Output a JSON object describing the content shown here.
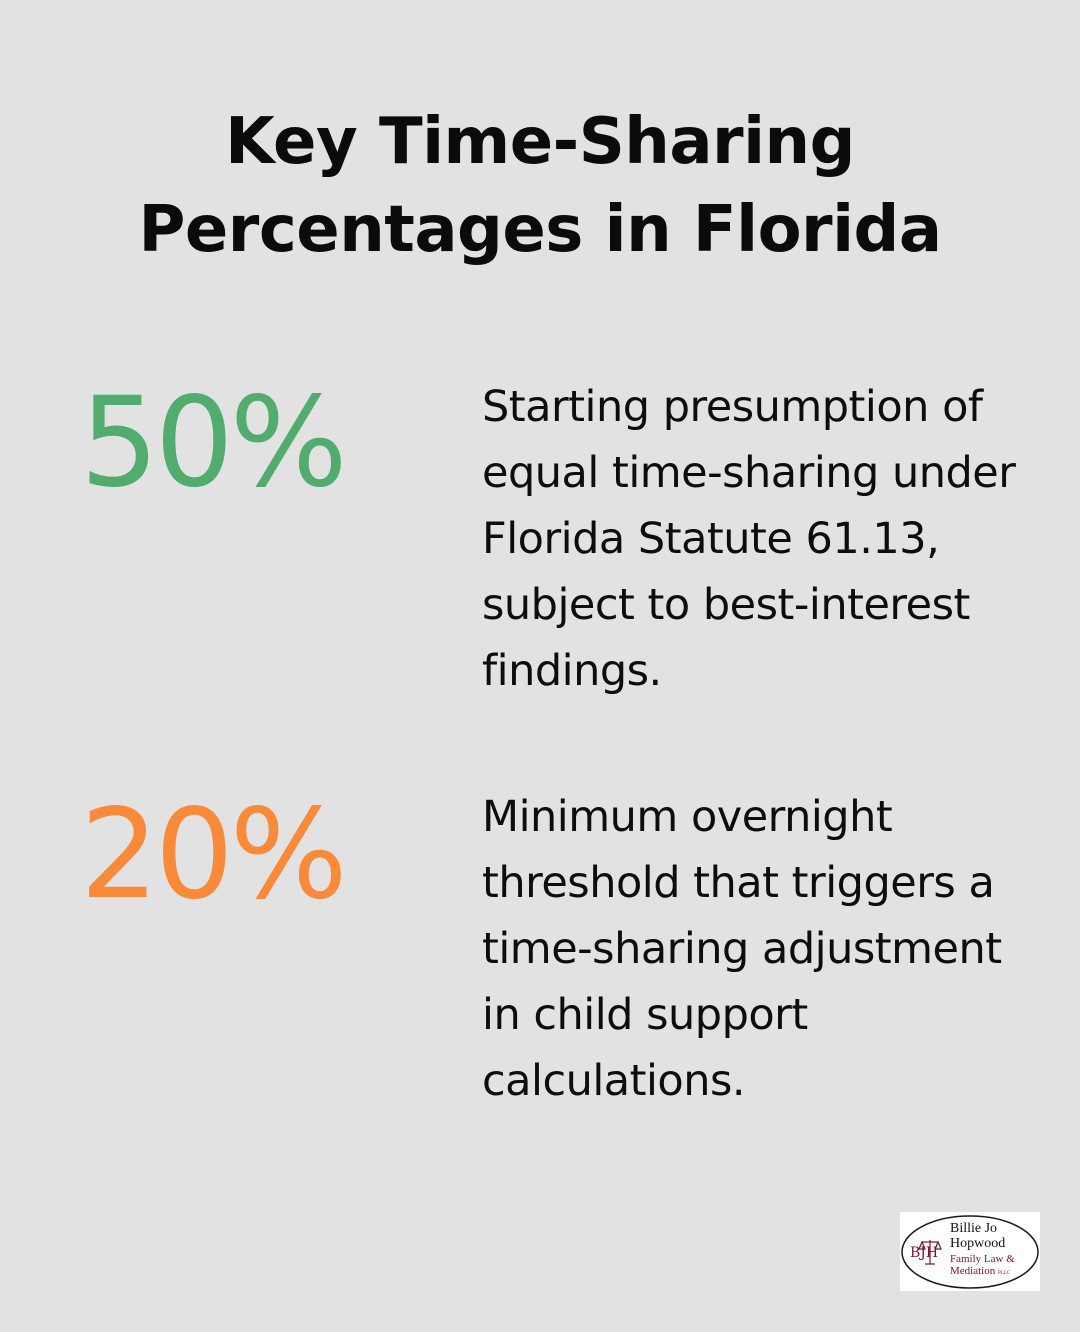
{
  "title": {
    "line1": "Key Time-Sharing",
    "line2": "Percentages in Florida"
  },
  "stats": [
    {
      "value": "50%",
      "color": "#52ab6f",
      "description": "Starting presumption of equal time-sharing under Florida Statute 61.13, subject to best-interest findings."
    },
    {
      "value": "20%",
      "color": "#f98a3a",
      "description": "Minimum overnight threshold that triggers a time-sharing adjustment in child support calculations."
    }
  ],
  "logo": {
    "initials": "BJH",
    "name_line1": "Billie Jo",
    "name_line2": "Hopwood",
    "tagline_line1": "Family Law &",
    "tagline_line2": "Mediation",
    "suffix": "PLLC"
  }
}
